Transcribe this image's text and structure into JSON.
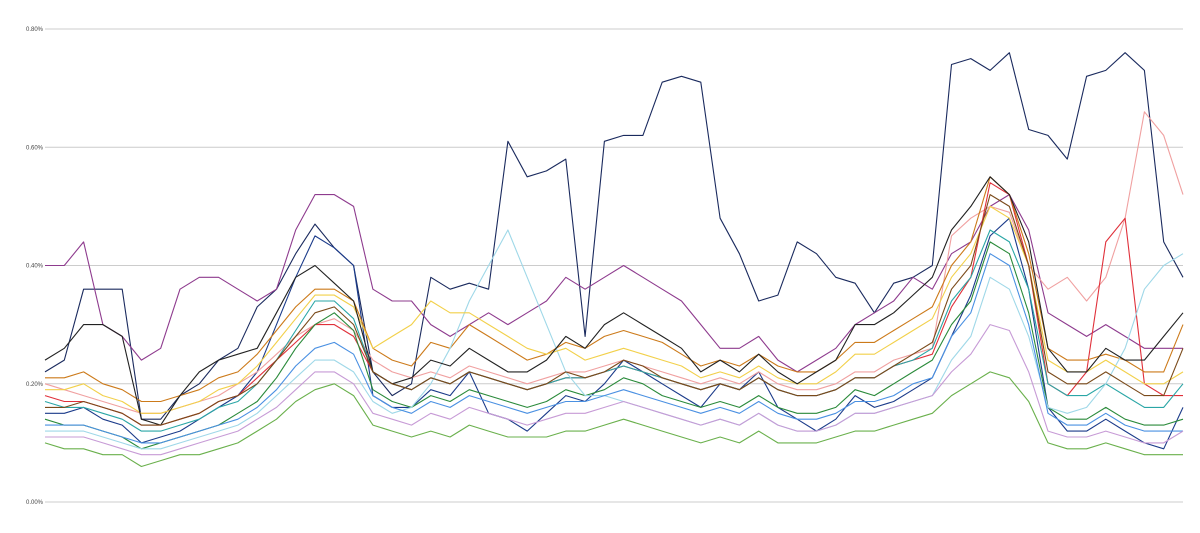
{
  "chart_data": {
    "type": "line",
    "title": "",
    "xlabel": "",
    "ylabel": "",
    "ylim": [
      0,
      0.8
    ],
    "y_ticks": [
      {
        "value": 0.0,
        "label": "0.00%"
      },
      {
        "value": 0.2,
        "label": "0.20%"
      },
      {
        "value": 0.4,
        "label": "0.40%"
      },
      {
        "value": 0.6,
        "label": "0.60%"
      },
      {
        "value": 0.8,
        "label": "0.80%"
      }
    ],
    "grid": "horizontal",
    "legend": "none",
    "n_points": 60,
    "series": [
      {
        "color": "#1a2a5e",
        "values": [
          0.22,
          0.24,
          0.36,
          0.36,
          0.36,
          0.14,
          0.14,
          0.18,
          0.2,
          0.24,
          0.26,
          0.33,
          0.36,
          0.42,
          0.47,
          0.43,
          0.4,
          0.22,
          0.18,
          0.2,
          0.38,
          0.36,
          0.37,
          0.36,
          0.61,
          0.55,
          0.56,
          0.58,
          0.28,
          0.61,
          0.62,
          0.62,
          0.71,
          0.72,
          0.71,
          0.48,
          0.42,
          0.34,
          0.35,
          0.44,
          0.42,
          0.38,
          0.37,
          0.32,
          0.37,
          0.38,
          0.4,
          0.74,
          0.75,
          0.73,
          0.76,
          0.63,
          0.62,
          0.58,
          0.72,
          0.73,
          0.76,
          0.73,
          0.44,
          0.38
        ]
      },
      {
        "color": "#1b3b8a",
        "values": [
          0.15,
          0.15,
          0.16,
          0.14,
          0.13,
          0.1,
          0.11,
          0.12,
          0.14,
          0.16,
          0.18,
          0.22,
          0.3,
          0.38,
          0.45,
          0.43,
          0.4,
          0.18,
          0.16,
          0.16,
          0.19,
          0.18,
          0.22,
          0.15,
          0.14,
          0.12,
          0.15,
          0.18,
          0.17,
          0.2,
          0.24,
          0.22,
          0.2,
          0.18,
          0.16,
          0.2,
          0.19,
          0.22,
          0.16,
          0.14,
          0.12,
          0.14,
          0.18,
          0.16,
          0.17,
          0.19,
          0.21,
          0.28,
          0.35,
          0.45,
          0.48,
          0.36,
          0.16,
          0.12,
          0.12,
          0.14,
          0.12,
          0.1,
          0.09,
          0.16
        ]
      },
      {
        "color": "#8e3b8e",
        "values": [
          0.4,
          0.4,
          0.44,
          0.3,
          0.28,
          0.24,
          0.26,
          0.36,
          0.38,
          0.38,
          0.36,
          0.34,
          0.36,
          0.46,
          0.52,
          0.52,
          0.5,
          0.36,
          0.34,
          0.34,
          0.3,
          0.28,
          0.3,
          0.32,
          0.3,
          0.32,
          0.34,
          0.38,
          0.36,
          0.38,
          0.4,
          0.38,
          0.36,
          0.34,
          0.3,
          0.26,
          0.26,
          0.28,
          0.24,
          0.22,
          0.24,
          0.26,
          0.3,
          0.32,
          0.34,
          0.38,
          0.36,
          0.42,
          0.44,
          0.5,
          0.52,
          0.46,
          0.32,
          0.3,
          0.28,
          0.3,
          0.28,
          0.26,
          0.26,
          0.26
        ]
      },
      {
        "color": "#f0a0a0",
        "values": [
          0.2,
          0.19,
          0.18,
          0.17,
          0.16,
          0.15,
          0.15,
          0.16,
          0.17,
          0.18,
          0.2,
          0.22,
          0.25,
          0.28,
          0.3,
          0.31,
          0.29,
          0.24,
          0.22,
          0.21,
          0.22,
          0.21,
          0.23,
          0.22,
          0.21,
          0.2,
          0.21,
          0.22,
          0.22,
          0.23,
          0.24,
          0.23,
          0.22,
          0.21,
          0.2,
          0.21,
          0.2,
          0.22,
          0.2,
          0.19,
          0.19,
          0.2,
          0.22,
          0.22,
          0.24,
          0.25,
          0.26,
          0.45,
          0.48,
          0.5,
          0.49,
          0.4,
          0.36,
          0.38,
          0.34,
          0.38,
          0.48,
          0.66,
          0.62,
          0.52
        ]
      },
      {
        "color": "#e0303a",
        "values": [
          0.18,
          0.17,
          0.17,
          0.16,
          0.15,
          0.13,
          0.13,
          0.14,
          0.15,
          0.17,
          0.18,
          0.21,
          0.24,
          0.27,
          0.3,
          0.3,
          0.28,
          0.22,
          0.2,
          0.19,
          0.21,
          0.2,
          0.22,
          0.21,
          0.2,
          0.19,
          0.2,
          0.21,
          0.21,
          0.22,
          0.23,
          0.22,
          0.21,
          0.2,
          0.19,
          0.2,
          0.19,
          0.21,
          0.19,
          0.18,
          0.18,
          0.19,
          0.21,
          0.21,
          0.23,
          0.24,
          0.25,
          0.33,
          0.38,
          0.54,
          0.52,
          0.4,
          0.2,
          0.18,
          0.22,
          0.44,
          0.48,
          0.2,
          0.18,
          0.18
        ]
      },
      {
        "color": "#cc7a1a",
        "values": [
          0.21,
          0.21,
          0.22,
          0.2,
          0.19,
          0.17,
          0.17,
          0.18,
          0.19,
          0.21,
          0.22,
          0.25,
          0.29,
          0.33,
          0.36,
          0.36,
          0.34,
          0.26,
          0.24,
          0.23,
          0.27,
          0.26,
          0.3,
          0.28,
          0.26,
          0.24,
          0.25,
          0.27,
          0.26,
          0.28,
          0.29,
          0.28,
          0.27,
          0.25,
          0.23,
          0.24,
          0.23,
          0.25,
          0.23,
          0.22,
          0.22,
          0.24,
          0.27,
          0.27,
          0.29,
          0.31,
          0.33,
          0.4,
          0.44,
          0.55,
          0.52,
          0.42,
          0.26,
          0.24,
          0.24,
          0.25,
          0.24,
          0.22,
          0.22,
          0.3
        ]
      },
      {
        "color": "#2a8a3a",
        "values": [
          0.14,
          0.13,
          0.13,
          0.12,
          0.11,
          0.09,
          0.1,
          0.11,
          0.12,
          0.13,
          0.15,
          0.17,
          0.21,
          0.26,
          0.3,
          0.32,
          0.29,
          0.19,
          0.17,
          0.16,
          0.18,
          0.17,
          0.19,
          0.18,
          0.17,
          0.16,
          0.17,
          0.19,
          0.18,
          0.19,
          0.21,
          0.2,
          0.18,
          0.17,
          0.16,
          0.17,
          0.16,
          0.18,
          0.16,
          0.15,
          0.15,
          0.16,
          0.19,
          0.18,
          0.2,
          0.22,
          0.24,
          0.3,
          0.34,
          0.44,
          0.42,
          0.32,
          0.16,
          0.14,
          0.14,
          0.16,
          0.14,
          0.13,
          0.13,
          0.14
        ]
      },
      {
        "color": "#6ab04c",
        "values": [
          0.1,
          0.09,
          0.09,
          0.08,
          0.08,
          0.06,
          0.07,
          0.08,
          0.08,
          0.09,
          0.1,
          0.12,
          0.14,
          0.17,
          0.19,
          0.2,
          0.18,
          0.13,
          0.12,
          0.11,
          0.12,
          0.11,
          0.13,
          0.12,
          0.11,
          0.11,
          0.11,
          0.12,
          0.12,
          0.13,
          0.14,
          0.13,
          0.12,
          0.11,
          0.1,
          0.11,
          0.1,
          0.12,
          0.1,
          0.1,
          0.1,
          0.11,
          0.12,
          0.12,
          0.13,
          0.14,
          0.15,
          0.18,
          0.2,
          0.22,
          0.21,
          0.17,
          0.1,
          0.09,
          0.09,
          0.1,
          0.09,
          0.08,
          0.08,
          0.08
        ]
      },
      {
        "color": "#2aa6a6",
        "values": [
          0.17,
          0.16,
          0.16,
          0.15,
          0.14,
          0.12,
          0.12,
          0.13,
          0.14,
          0.16,
          0.17,
          0.2,
          0.24,
          0.29,
          0.34,
          0.34,
          0.31,
          0.22,
          0.2,
          0.19,
          0.21,
          0.2,
          0.22,
          0.21,
          0.2,
          0.19,
          0.2,
          0.21,
          0.21,
          0.22,
          0.23,
          0.22,
          0.21,
          0.2,
          0.19,
          0.2,
          0.19,
          0.21,
          0.19,
          0.18,
          0.18,
          0.19,
          0.21,
          0.21,
          0.23,
          0.24,
          0.26,
          0.34,
          0.38,
          0.46,
          0.44,
          0.36,
          0.2,
          0.18,
          0.18,
          0.2,
          0.18,
          0.16,
          0.16,
          0.2
        ]
      },
      {
        "color": "#9fd8e8",
        "values": [
          0.12,
          0.12,
          0.12,
          0.11,
          0.1,
          0.09,
          0.09,
          0.1,
          0.11,
          0.12,
          0.13,
          0.15,
          0.18,
          0.21,
          0.24,
          0.24,
          0.22,
          0.17,
          0.15,
          0.16,
          0.2,
          0.26,
          0.34,
          0.4,
          0.46,
          0.38,
          0.3,
          0.22,
          0.18,
          0.18,
          0.17,
          0.16,
          0.15,
          0.14,
          0.13,
          0.14,
          0.13,
          0.15,
          0.13,
          0.12,
          0.12,
          0.13,
          0.15,
          0.15,
          0.16,
          0.17,
          0.18,
          0.24,
          0.28,
          0.38,
          0.36,
          0.28,
          0.16,
          0.15,
          0.16,
          0.2,
          0.26,
          0.36,
          0.4,
          0.42
        ]
      },
      {
        "color": "#f2d04a",
        "values": [
          0.19,
          0.19,
          0.2,
          0.18,
          0.17,
          0.15,
          0.15,
          0.16,
          0.17,
          0.19,
          0.2,
          0.23,
          0.27,
          0.31,
          0.35,
          0.35,
          0.33,
          0.26,
          0.28,
          0.3,
          0.34,
          0.32,
          0.32,
          0.3,
          0.28,
          0.26,
          0.25,
          0.26,
          0.24,
          0.25,
          0.26,
          0.25,
          0.24,
          0.23,
          0.21,
          0.22,
          0.21,
          0.23,
          0.21,
          0.2,
          0.2,
          0.22,
          0.25,
          0.25,
          0.27,
          0.29,
          0.31,
          0.38,
          0.42,
          0.5,
          0.48,
          0.4,
          0.24,
          0.22,
          0.22,
          0.24,
          0.22,
          0.2,
          0.2,
          0.22
        ]
      },
      {
        "color": "#222222",
        "values": [
          0.24,
          0.26,
          0.3,
          0.3,
          0.28,
          0.14,
          0.13,
          0.18,
          0.22,
          0.24,
          0.25,
          0.26,
          0.32,
          0.38,
          0.4,
          0.37,
          0.34,
          0.22,
          0.2,
          0.21,
          0.24,
          0.23,
          0.26,
          0.24,
          0.22,
          0.22,
          0.24,
          0.28,
          0.26,
          0.3,
          0.32,
          0.3,
          0.28,
          0.26,
          0.22,
          0.24,
          0.22,
          0.25,
          0.22,
          0.2,
          0.22,
          0.24,
          0.3,
          0.3,
          0.32,
          0.35,
          0.38,
          0.46,
          0.5,
          0.55,
          0.52,
          0.44,
          0.26,
          0.22,
          0.22,
          0.26,
          0.24,
          0.24,
          0.28,
          0.32
        ]
      },
      {
        "color": "#7a4a1a",
        "values": [
          0.16,
          0.16,
          0.17,
          0.16,
          0.15,
          0.13,
          0.13,
          0.14,
          0.15,
          0.17,
          0.18,
          0.2,
          0.24,
          0.28,
          0.32,
          0.33,
          0.3,
          0.22,
          0.2,
          0.19,
          0.21,
          0.2,
          0.22,
          0.21,
          0.2,
          0.19,
          0.2,
          0.22,
          0.21,
          0.22,
          0.24,
          0.23,
          0.21,
          0.2,
          0.19,
          0.2,
          0.19,
          0.21,
          0.19,
          0.18,
          0.18,
          0.19,
          0.21,
          0.21,
          0.23,
          0.25,
          0.27,
          0.36,
          0.4,
          0.52,
          0.5,
          0.4,
          0.22,
          0.2,
          0.2,
          0.22,
          0.2,
          0.18,
          0.18,
          0.26
        ]
      },
      {
        "color": "#4a90e2",
        "values": [
          0.13,
          0.13,
          0.13,
          0.12,
          0.11,
          0.1,
          0.1,
          0.11,
          0.12,
          0.13,
          0.14,
          0.16,
          0.19,
          0.23,
          0.26,
          0.27,
          0.25,
          0.18,
          0.16,
          0.15,
          0.17,
          0.16,
          0.18,
          0.17,
          0.16,
          0.15,
          0.16,
          0.17,
          0.17,
          0.18,
          0.19,
          0.18,
          0.17,
          0.16,
          0.15,
          0.16,
          0.15,
          0.17,
          0.15,
          0.14,
          0.14,
          0.15,
          0.17,
          0.17,
          0.18,
          0.2,
          0.21,
          0.28,
          0.32,
          0.42,
          0.4,
          0.3,
          0.15,
          0.13,
          0.13,
          0.15,
          0.13,
          0.12,
          0.12,
          0.12
        ]
      },
      {
        "color": "#c79bd6",
        "values": [
          0.11,
          0.11,
          0.11,
          0.1,
          0.09,
          0.08,
          0.08,
          0.09,
          0.1,
          0.11,
          0.12,
          0.14,
          0.16,
          0.19,
          0.22,
          0.22,
          0.2,
          0.15,
          0.14,
          0.13,
          0.15,
          0.14,
          0.16,
          0.15,
          0.14,
          0.13,
          0.14,
          0.15,
          0.15,
          0.16,
          0.17,
          0.16,
          0.15,
          0.14,
          0.13,
          0.14,
          0.13,
          0.15,
          0.13,
          0.12,
          0.12,
          0.13,
          0.15,
          0.15,
          0.16,
          0.17,
          0.18,
          0.22,
          0.25,
          0.3,
          0.29,
          0.22,
          0.12,
          0.11,
          0.11,
          0.12,
          0.11,
          0.1,
          0.1,
          0.12
        ]
      }
    ]
  }
}
